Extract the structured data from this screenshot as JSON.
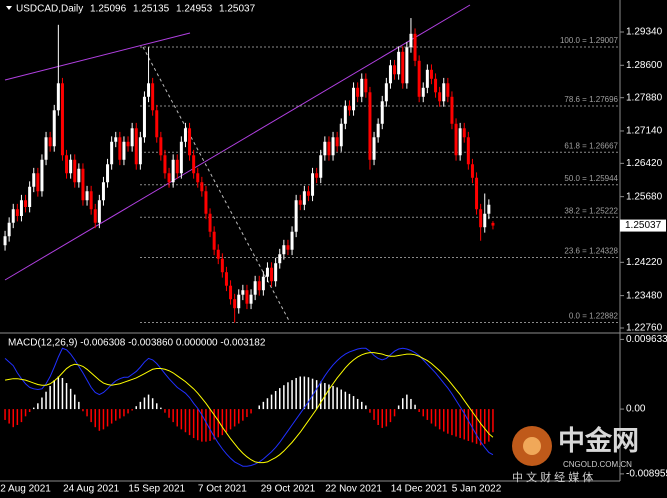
{
  "chart_data": [
    {
      "type": "candlestick",
      "title": "USDCAD,Daily",
      "categories": [
        null,
        null,
        null,
        null,
        null,
        "2 Aug 2021",
        null,
        null,
        null,
        null,
        null,
        null,
        null,
        null,
        null,
        null,
        null,
        null,
        null,
        null,
        null,
        "24 Aug 2021",
        null,
        null,
        null,
        null,
        null,
        null,
        null,
        null,
        null,
        null,
        null,
        null,
        null,
        null,
        null,
        "15 Sep 2021",
        null,
        null,
        null,
        null,
        null,
        null,
        null,
        null,
        null,
        null,
        null,
        null,
        null,
        null,
        null,
        "7 Oct 2021",
        null,
        null,
        null,
        null,
        null,
        null,
        null,
        null,
        null,
        null,
        null,
        null,
        null,
        null,
        null,
        "29 Oct 2021",
        null,
        null,
        null,
        null,
        null,
        null,
        null,
        null,
        null,
        null,
        null,
        null,
        null,
        null,
        null,
        "22 Nov 2021",
        null,
        null,
        null,
        null,
        null,
        null,
        null,
        null,
        null,
        null,
        null,
        null,
        null,
        null,
        null,
        "14 Dec 2021",
        null,
        null,
        null,
        null,
        null,
        null,
        null,
        null,
        null,
        null,
        null,
        null,
        null,
        "5 Jan 2022",
        null,
        null,
        null,
        null
      ],
      "open": [
        1.246,
        1.248,
        1.251,
        1.254,
        1.2525,
        1.256,
        1.2545,
        1.259,
        1.262,
        1.258,
        1.265,
        1.27,
        1.268,
        1.276,
        1.282,
        1.266,
        1.262,
        1.265,
        1.26,
        1.263,
        1.256,
        1.258,
        1.254,
        1.251,
        1.256,
        1.26,
        1.264,
        1.269,
        1.27,
        1.265,
        1.269,
        1.268,
        1.272,
        1.264,
        1.27,
        1.279,
        1.282,
        1.276,
        1.27,
        1.266,
        1.262,
        1.26,
        1.265,
        1.262,
        1.269,
        1.272,
        1.266,
        1.262,
        1.26,
        1.258,
        1.253,
        1.249,
        1.245,
        1.243,
        1.24,
        1.237,
        1.234,
        1.232,
        1.235,
        1.236,
        1.233,
        1.235,
        1.238,
        1.236,
        1.239,
        1.241,
        1.238,
        1.242,
        1.244,
        1.246,
        1.245,
        1.249,
        1.256,
        1.255,
        1.258,
        1.257,
        1.262,
        1.261,
        1.266,
        1.269,
        1.266,
        1.27,
        1.268,
        1.273,
        1.277,
        1.276,
        1.281,
        1.279,
        1.283,
        1.28,
        1.265,
        1.27,
        1.273,
        1.278,
        1.282,
        1.286,
        1.284,
        1.289,
        1.282,
        1.29,
        1.293,
        1.287,
        1.279,
        1.281,
        1.285,
        1.283,
        1.28,
        1.278,
        1.282,
        1.279,
        1.273,
        1.266,
        1.272,
        1.27,
        1.264,
        1.261,
        1.254,
        1.25,
        1.253,
        1.25096
      ],
      "high": [
        1.2492,
        1.2522,
        1.2552,
        1.2552,
        1.2572,
        1.2572,
        1.2602,
        1.2632,
        1.2632,
        1.2662,
        1.2712,
        1.2712,
        1.2772,
        1.295,
        1.2832,
        1.2672,
        1.2662,
        1.2662,
        1.2642,
        1.2642,
        1.2592,
        1.2592,
        1.2552,
        1.2572,
        1.2612,
        1.2652,
        1.2702,
        1.2712,
        1.2712,
        1.2702,
        1.2702,
        1.2732,
        1.2732,
        1.2712,
        1.2802,
        1.29,
        1.2832,
        1.2772,
        1.2712,
        1.2672,
        1.2632,
        1.2662,
        1.2662,
        1.2702,
        1.2732,
        1.2732,
        1.2672,
        1.2632,
        1.2612,
        1.2592,
        1.2542,
        1.2502,
        1.2462,
        1.2442,
        1.2412,
        1.2382,
        1.2352,
        1.2362,
        1.2372,
        1.2372,
        1.2362,
        1.2392,
        1.2392,
        1.2402,
        1.2422,
        1.2422,
        1.2432,
        1.2452,
        1.2472,
        1.2472,
        1.2502,
        1.2572,
        1.2572,
        1.2592,
        1.2592,
        1.2632,
        1.2632,
        1.2672,
        1.2702,
        1.2702,
        1.2712,
        1.2712,
        1.2742,
        1.2782,
        1.2782,
        1.2822,
        1.2822,
        1.2842,
        1.2842,
        1.2812,
        1.2712,
        1.2742,
        1.2792,
        1.2832,
        1.2872,
        1.2872,
        1.2902,
        1.2902,
        1.2912,
        1.2965,
        1.2942,
        1.2882,
        1.2822,
        1.2862,
        1.2862,
        1.2842,
        1.2812,
        1.2832,
        1.2832,
        1.2802,
        1.2742,
        1.2732,
        1.2732,
        1.2712,
        1.2652,
        1.2622,
        1.2552,
        1.2575,
        1.2562,
        1.25135
      ],
      "low": [
        1.2448,
        1.2468,
        1.2498,
        1.2513,
        1.2513,
        1.2533,
        1.2533,
        1.2578,
        1.2568,
        1.2568,
        1.2638,
        1.2668,
        1.2668,
        1.2748,
        1.2648,
        1.2608,
        1.2608,
        1.2588,
        1.2588,
        1.2548,
        1.2548,
        1.2528,
        1.2498,
        1.2498,
        1.2548,
        1.2588,
        1.2628,
        1.2678,
        1.2638,
        1.2638,
        1.2668,
        1.2668,
        1.2628,
        1.2628,
        1.2688,
        1.2778,
        1.2748,
        1.2688,
        1.2648,
        1.2608,
        1.2588,
        1.2588,
        1.2608,
        1.2608,
        1.2678,
        1.2648,
        1.2608,
        1.2588,
        1.2568,
        1.2518,
        1.2478,
        1.2438,
        1.2418,
        1.2388,
        1.2358,
        1.2328,
        1.2288,
        1.2308,
        1.2338,
        1.2318,
        1.2318,
        1.2338,
        1.2348,
        1.2348,
        1.2378,
        1.2368,
        1.2368,
        1.2408,
        1.2428,
        1.2438,
        1.2438,
        1.2478,
        1.2538,
        1.2538,
        1.2558,
        1.2558,
        1.2598,
        1.2598,
        1.2648,
        1.2648,
        1.2648,
        1.2668,
        1.2668,
        1.2718,
        1.2748,
        1.2748,
        1.2778,
        1.2778,
        1.2788,
        1.2628,
        1.2638,
        1.2688,
        1.2718,
        1.2768,
        1.2808,
        1.2828,
        1.2828,
        1.2808,
        1.2808,
        1.2888,
        1.2858,
        1.2778,
        1.2778,
        1.2798,
        1.2818,
        1.2788,
        1.2768,
        1.2768,
        1.2778,
        1.2718,
        1.2648,
        1.2648,
        1.2688,
        1.2628,
        1.2598,
        1.2528,
        1.247,
        1.2488,
        1.2518,
        1.24953
      ],
      "close": [
        1.248,
        1.251,
        1.254,
        1.2525,
        1.256,
        1.2545,
        1.259,
        1.262,
        1.258,
        1.265,
        1.27,
        1.268,
        1.276,
        1.282,
        1.266,
        1.262,
        1.265,
        1.26,
        1.263,
        1.256,
        1.258,
        1.254,
        1.251,
        1.256,
        1.26,
        1.264,
        1.269,
        1.27,
        1.265,
        1.269,
        1.268,
        1.272,
        1.264,
        1.27,
        1.279,
        1.282,
        1.276,
        1.27,
        1.266,
        1.262,
        1.26,
        1.265,
        1.262,
        1.269,
        1.272,
        1.266,
        1.262,
        1.26,
        1.258,
        1.253,
        1.249,
        1.245,
        1.243,
        1.24,
        1.237,
        1.234,
        1.232,
        1.235,
        1.236,
        1.233,
        1.235,
        1.238,
        1.236,
        1.239,
        1.241,
        1.238,
        1.242,
        1.244,
        1.246,
        1.245,
        1.249,
        1.256,
        1.255,
        1.258,
        1.257,
        1.262,
        1.261,
        1.266,
        1.269,
        1.266,
        1.27,
        1.268,
        1.273,
        1.277,
        1.276,
        1.281,
        1.279,
        1.283,
        1.28,
        1.265,
        1.27,
        1.273,
        1.278,
        1.282,
        1.286,
        1.284,
        1.289,
        1.282,
        1.29,
        1.293,
        1.287,
        1.279,
        1.281,
        1.285,
        1.283,
        1.28,
        1.278,
        1.282,
        1.279,
        1.273,
        1.266,
        1.272,
        1.27,
        1.264,
        1.261,
        1.254,
        1.25,
        1.253,
        1.255,
        1.25037
      ],
      "colors": {
        "up": "#ffffff",
        "down": "#ff0000"
      },
      "ylim": [
        1.22671,
        1.29985
      ],
      "yticks": [
        {
          "value": 1.2934,
          "label": "1.29340"
        },
        {
          "value": 1.286,
          "label": "1.28600"
        },
        {
          "value": 1.2788,
          "label": "1.27880"
        },
        {
          "value": 1.2714,
          "label": "1.27140"
        },
        {
          "value": 1.2642,
          "label": "1.26420"
        },
        {
          "value": 1.2568,
          "label": "1.25680"
        },
        {
          "value": 1.2422,
          "label": "1.24220"
        },
        {
          "value": 1.2348,
          "label": "1.23480"
        },
        {
          "value": 1.2276,
          "label": "1.22760"
        }
      ],
      "fibonacci": [
        {
          "label": "100.0 = 1.29007",
          "value": 1.29007
        },
        {
          "label": "78.6 = 1.27696",
          "value": 1.27696
        },
        {
          "label": "61.8 = 1.26667",
          "value": 1.26667
        },
        {
          "label": "50.0 = 1.25944",
          "value": 1.25944
        },
        {
          "label": "38.2 = 1.25222",
          "value": 1.25222
        },
        {
          "label": "23.6 = 1.24328",
          "value": 1.24328
        },
        {
          "label": "0.0 = 1.22882",
          "value": 1.22882
        }
      ],
      "grid": false
    },
    {
      "type": "macd",
      "title": "MACD(12,26,9) -0.006308 -0.003860 0.000000 -0.003182",
      "ylim": [
        -0.0098,
        0.0101
      ],
      "yticks": [
        0.009633,
        {
          "value": 0,
          "label": "0.00"
        },
        -0.008955
      ],
      "series": [
        {
          "type": "bar",
          "color": "#ff0000",
          "color_positive": "#ffffff",
          "values": [
            -0.0015,
            -0.002,
            -0.0025,
            -0.0022,
            -0.0018,
            -0.001,
            -0.0004,
            0.0002,
            0.0008,
            0.0016,
            0.0024,
            0.0032,
            0.004,
            0.0045,
            0.0043,
            0.0036,
            0.0028,
            0.002,
            0.001,
            -0.0003,
            -0.001,
            -0.0018,
            -0.0025,
            -0.003,
            -0.0028,
            -0.0024,
            -0.002,
            -0.0016,
            -0.0013,
            -0.001,
            -0.0006,
            -0.0002,
            0.0004,
            0.001,
            0.0016,
            0.002,
            0.0015,
            0.0008,
            0.0002,
            -0.0005,
            -0.0012,
            -0.0018,
            -0.0024,
            -0.0028,
            -0.0032,
            -0.0036,
            -0.004,
            -0.0043,
            -0.0045,
            -0.0045,
            -0.0044,
            -0.0042,
            -0.0039,
            -0.0036,
            -0.0032,
            -0.0028,
            -0.0024,
            -0.002,
            -0.0016,
            -0.0011,
            -0.0006,
            0.0,
            0.0005,
            0.001,
            0.0015,
            0.002,
            0.0025,
            0.0029,
            0.0033,
            0.0037,
            0.004,
            0.0043,
            0.0045,
            0.0045,
            0.0044,
            0.0042,
            0.004,
            0.0038,
            0.0036,
            0.0034,
            0.0032,
            0.003,
            0.0027,
            0.0024,
            0.0021,
            0.0018,
            0.0014,
            0.001,
            0.0005,
            -0.0005,
            -0.0015,
            -0.0022,
            -0.0026,
            -0.0024,
            -0.0018,
            -0.001,
            0.0005,
            0.0015,
            0.002,
            0.0014,
            0.0006,
            -0.0004,
            -0.001,
            -0.0015,
            -0.002,
            -0.0024,
            -0.0028,
            -0.0031,
            -0.0034,
            -0.0036,
            -0.0038,
            -0.004,
            -0.0042,
            -0.0044,
            -0.0046,
            -0.0048,
            -0.005,
            -0.0048,
            -0.0045,
            -0.0032
          ]
        },
        {
          "type": "line",
          "color": "#2030ff",
          "values": [
            0.007,
            0.0065,
            0.006,
            0.005,
            0.0042,
            0.0035,
            0.003,
            0.0028,
            0.0027,
            0.0028,
            0.0035,
            0.0045,
            0.0058,
            0.0072,
            0.0084,
            0.0082,
            0.0076,
            0.0068,
            0.0059,
            0.005,
            0.004,
            0.003,
            0.0023,
            0.002,
            0.0023,
            0.0028,
            0.0034,
            0.0039,
            0.0042,
            0.0044,
            0.0044,
            0.0048,
            0.0052,
            0.0058,
            0.0065,
            0.007,
            0.0068,
            0.0063,
            0.0056,
            0.0049,
            0.0042,
            0.0036,
            0.003,
            0.0026,
            0.0022,
            0.0016,
            0.0008,
            0.0001,
            -0.0008,
            -0.0018,
            -0.0028,
            -0.0038,
            -0.0047,
            -0.0055,
            -0.0062,
            -0.0068,
            -0.0073,
            -0.0076,
            -0.0079,
            -0.0079,
            -0.0078,
            -0.0076,
            -0.0073,
            -0.0069,
            -0.0064,
            -0.0059,
            -0.0053,
            -0.0046,
            -0.0038,
            -0.003,
            -0.0022,
            -0.0014,
            -0.0006,
            0.0002,
            0.001,
            0.0019,
            0.0028,
            0.0037,
            0.0046,
            0.0054,
            0.0061,
            0.0067,
            0.0072,
            0.0076,
            0.0079,
            0.0081,
            0.0083,
            0.0084,
            0.0084,
            0.008,
            0.0074,
            0.007,
            0.0068,
            0.007,
            0.0075,
            0.008,
            0.0083,
            0.0084,
            0.0083,
            0.0081,
            0.0078,
            0.0074,
            0.0068,
            0.0062,
            0.0056,
            0.005,
            0.0043,
            0.0036,
            0.0029,
            0.0021,
            0.0012,
            0.0003,
            -0.0006,
            -0.0016,
            -0.0026,
            -0.0036,
            -0.0045,
            -0.0053,
            -0.006,
            -0.0063
          ]
        },
        {
          "type": "line",
          "color": "#ffff00",
          "values": [
            0.004,
            0.0041,
            0.0042,
            0.0042,
            0.0041,
            0.004,
            0.0038,
            0.0036,
            0.0034,
            0.0033,
            0.0033,
            0.0035,
            0.0039,
            0.0044,
            0.005,
            0.0056,
            0.006,
            0.0062,
            0.0061,
            0.0059,
            0.0055,
            0.005,
            0.0045,
            0.004,
            0.0036,
            0.0034,
            0.0033,
            0.0034,
            0.0035,
            0.0037,
            0.0039,
            0.0041,
            0.0043,
            0.0046,
            0.0049,
            0.0052,
            0.0055,
            0.0056,
            0.0056,
            0.0055,
            0.0053,
            0.005,
            0.0046,
            0.0042,
            0.0038,
            0.0033,
            0.0028,
            0.0022,
            0.0015,
            0.0008,
            0.0,
            -0.0008,
            -0.0016,
            -0.0025,
            -0.0033,
            -0.0041,
            -0.0048,
            -0.0055,
            -0.0061,
            -0.0066,
            -0.007,
            -0.0073,
            -0.0074,
            -0.0074,
            -0.0073,
            -0.007,
            -0.0067,
            -0.0063,
            -0.0058,
            -0.0052,
            -0.0046,
            -0.0039,
            -0.0032,
            -0.0024,
            -0.0016,
            -0.0008,
            0.0,
            0.0009,
            0.0018,
            0.0027,
            0.0035,
            0.0043,
            0.005,
            0.0057,
            0.0063,
            0.0068,
            0.0072,
            0.0075,
            0.0077,
            0.0078,
            0.0078,
            0.0077,
            0.0076,
            0.0074,
            0.0073,
            0.0073,
            0.0074,
            0.0075,
            0.0076,
            0.0076,
            0.0075,
            0.0073,
            0.007,
            0.0067,
            0.0063,
            0.0058,
            0.0053,
            0.0047,
            0.0041,
            0.0034,
            0.0027,
            0.002,
            0.0012,
            0.0004,
            -0.0004,
            -0.0012,
            -0.002,
            -0.0027,
            -0.0034,
            -0.0039
          ]
        }
      ]
    }
  ],
  "watermark": {
    "logo": "中金网",
    "site": "CNGOLD.COM.CN",
    "slogan": "中 文 财 经 媒 体"
  }
}
